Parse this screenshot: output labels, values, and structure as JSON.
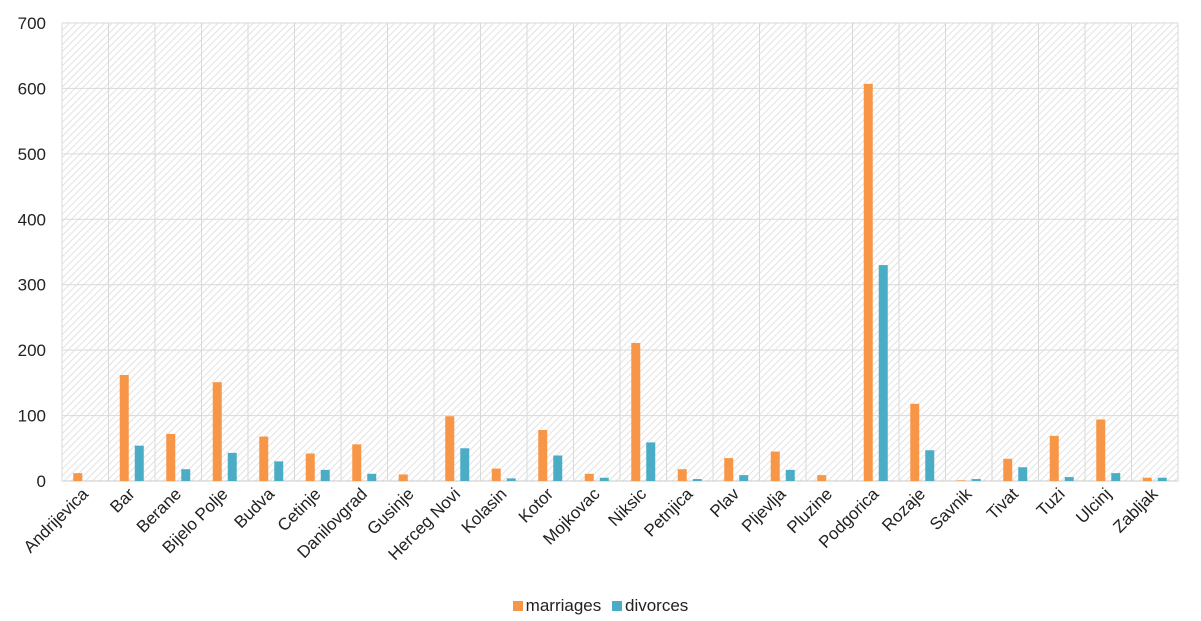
{
  "colors": {
    "marriages": "#f79646",
    "divorces": "#4bacc6",
    "grid": "#d9d9d9",
    "hatch": "#e2e2e2",
    "axis": "#c8c8c8"
  },
  "chart_data": {
    "type": "bar",
    "title": "",
    "xlabel": "",
    "ylabel": "",
    "ylim": [
      0,
      700
    ],
    "yticks": [
      0,
      100,
      200,
      300,
      400,
      500,
      600,
      700
    ],
    "ytick_labels": [
      "0",
      "100",
      "200",
      "300",
      "400",
      "500",
      "600",
      "700"
    ],
    "grid": true,
    "legend_position": "bottom",
    "categories": [
      "Andrijevica",
      "Bar",
      "Berane",
      "Bijelo Polje",
      "Budva",
      "Cetinje",
      "Danilovgrad",
      "Gusinje",
      "Herceg Novi",
      "Kolasin",
      "Kotor",
      "Mojkovac",
      "Niksic",
      "Petnjica",
      "Plav",
      "Pljevlja",
      "Pluzine",
      "Podgorica",
      "Rozaje",
      "Savnik",
      "Tivat",
      "Tuzi",
      "Ulcinj",
      "Zabljak"
    ],
    "series": [
      {
        "name": "marriages",
        "values": [
          12,
          162,
          72,
          151,
          68,
          42,
          56,
          10,
          99,
          19,
          78,
          11,
          211,
          18,
          35,
          45,
          9,
          607,
          118,
          1,
          34,
          69,
          94,
          5
        ]
      },
      {
        "name": "divorces",
        "values": [
          0,
          54,
          18,
          43,
          30,
          17,
          11,
          0,
          50,
          4,
          39,
          5,
          59,
          3,
          9,
          17,
          0,
          330,
          47,
          3,
          21,
          6,
          12,
          5
        ]
      }
    ]
  }
}
